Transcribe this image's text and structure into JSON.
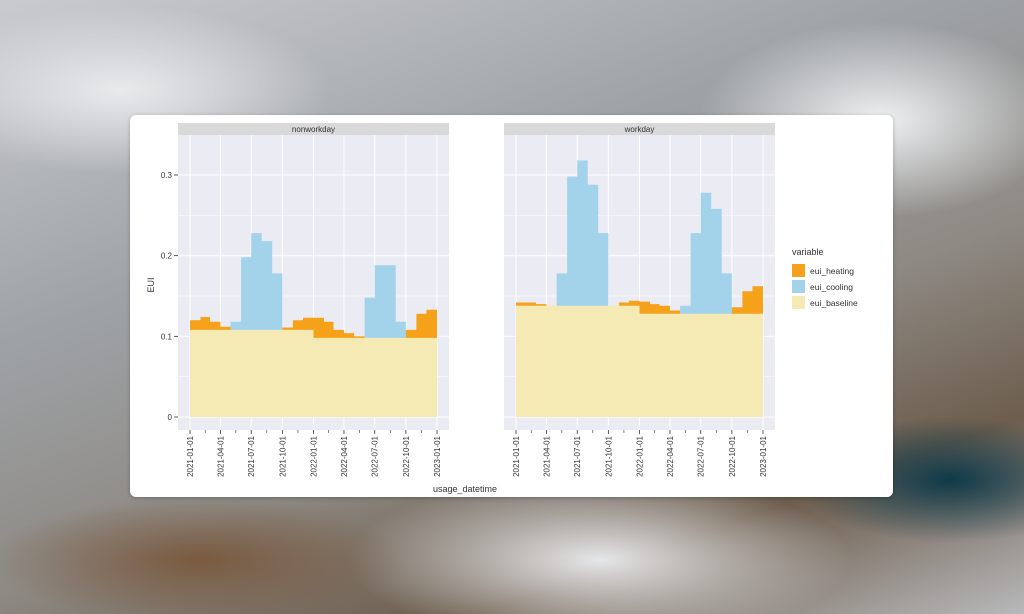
{
  "chart_data": {
    "type": "area",
    "stacked": true,
    "ylabel": "EUI",
    "xlabel": "usage_datetime",
    "ylim": [
      0,
      0.35
    ],
    "yticks": [
      0,
      0.1,
      0.2,
      0.3
    ],
    "ytick_labels": [
      "0",
      "0.1",
      "0.2",
      "0.3"
    ],
    "xticks": [
      "2021-01-01",
      "2021-04-01",
      "2021-07-01",
      "2021-10-01",
      "2022-01-01",
      "2022-04-01",
      "2022-07-01",
      "2022-10-01",
      "2023-01-01"
    ],
    "x_months": [
      "2021-01",
      "2021-02",
      "2021-03",
      "2021-04",
      "2021-05",
      "2021-06",
      "2021-07",
      "2021-08",
      "2021-09",
      "2021-10",
      "2021-11",
      "2021-12",
      "2022-01",
      "2022-02",
      "2022-03",
      "2022-04",
      "2022-05",
      "2022-06",
      "2022-07",
      "2022-08",
      "2022-09",
      "2022-10",
      "2022-11",
      "2022-12"
    ],
    "legend": {
      "title": "variable",
      "position": "right",
      "items": [
        {
          "name": "eui_heating",
          "color": "#f5a21a"
        },
        {
          "name": "eui_cooling",
          "color": "#a3d3ea"
        },
        {
          "name": "eui_baseline",
          "color": "#f6eab4"
        }
      ]
    },
    "panels": [
      {
        "title": "nonworkday",
        "series": [
          {
            "name": "eui_baseline",
            "values": [
              0.108,
              0.108,
              0.108,
              0.108,
              0.108,
              0.108,
              0.108,
              0.108,
              0.108,
              0.108,
              0.108,
              0.108,
              0.098,
              0.098,
              0.098,
              0.098,
              0.098,
              0.098,
              0.098,
              0.098,
              0.098,
              0.098,
              0.098,
              0.098
            ]
          },
          {
            "name": "eui_cooling",
            "values": [
              0,
              0,
              0,
              0,
              0.01,
              0.09,
              0.12,
              0.11,
              0.07,
              0,
              0,
              0,
              0,
              0,
              0,
              0,
              0,
              0.05,
              0.09,
              0.09,
              0.02,
              0,
              0,
              0
            ]
          },
          {
            "name": "eui_heating",
            "values": [
              0.012,
              0.016,
              0.01,
              0.004,
              0,
              0,
              0,
              0,
              0,
              0.003,
              0.012,
              0.015,
              0.025,
              0.02,
              0.01,
              0.006,
              0.002,
              0,
              0,
              0,
              0,
              0.01,
              0.03,
              0.035
            ]
          }
        ]
      },
      {
        "title": "workday",
        "series": [
          {
            "name": "eui_baseline",
            "values": [
              0.138,
              0.138,
              0.138,
              0.138,
              0.138,
              0.138,
              0.138,
              0.138,
              0.138,
              0.138,
              0.138,
              0.138,
              0.128,
              0.128,
              0.128,
              0.128,
              0.128,
              0.128,
              0.128,
              0.128,
              0.128,
              0.128,
              0.128,
              0.128
            ]
          },
          {
            "name": "eui_cooling",
            "values": [
              0,
              0,
              0,
              0,
              0.04,
              0.16,
              0.18,
              0.15,
              0.09,
              0,
              0,
              0,
              0,
              0,
              0,
              0,
              0.01,
              0.1,
              0.15,
              0.13,
              0.05,
              0,
              0,
              0
            ]
          },
          {
            "name": "eui_heating",
            "values": [
              0.004,
              0.004,
              0.002,
              0,
              0,
              0,
              0,
              0,
              0,
              0,
              0.004,
              0.006,
              0.015,
              0.012,
              0.01,
              0.004,
              0,
              0,
              0,
              0,
              0,
              0.008,
              0.028,
              0.034
            ]
          }
        ]
      }
    ]
  }
}
